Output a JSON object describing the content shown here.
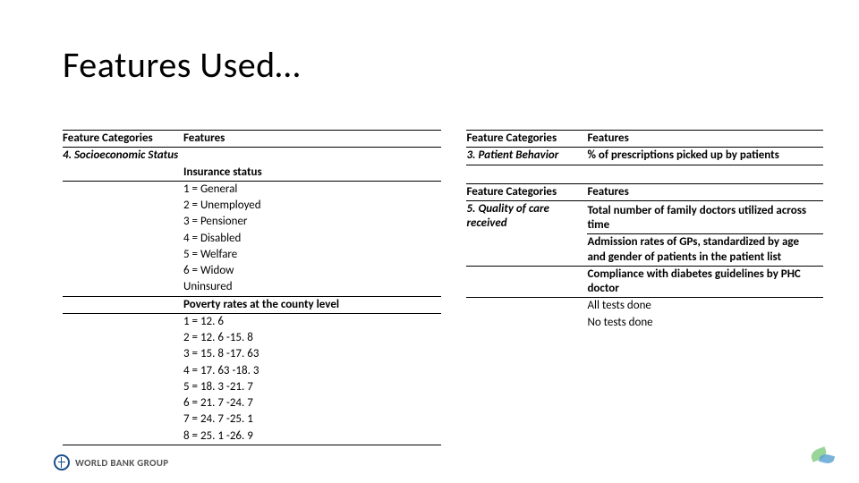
{
  "title": "Features Used…",
  "left": {
    "header": {
      "categories": "Feature Categories",
      "features": "Features"
    },
    "category": "4. Socioeconomic Status",
    "sub1": {
      "label": "Insurance status",
      "items": [
        "1  = General",
        "2  = Unemployed",
        "3  = Pensioner",
        "4  = Disabled",
        "5  = Welfare",
        "6  = Widow",
        "Uninsured"
      ]
    },
    "sub2": {
      "label": "Poverty rates at the county level",
      "items": [
        "1 = 12. 6",
        "2 = 12. 6 -15. 8",
        "3 = 15. 8 -17. 63",
        "4 = 17. 63 -18. 3",
        "5 = 18. 3 -21. 7",
        "6 = 21. 7 -24. 7",
        "7 = 24. 7 -25. 1",
        "8 = 25. 1 -26. 9"
      ]
    }
  },
  "right": {
    "block1": {
      "header": {
        "categories": "Feature Categories",
        "features": "Features"
      },
      "category": "3. Patient Behavior",
      "feature": "% of prescriptions picked up by patients"
    },
    "block2": {
      "header": {
        "categories": "Feature Categories",
        "features": "Features"
      },
      "category": "5. Quality of care received",
      "features": [
        "Total number of family doctors utilized across time",
        "Admission rates of GPs, standardized by age and gender of patients in the patient list",
        "Compliance with diabetes guidelines by PHC doctor"
      ],
      "tail": [
        "All tests done",
        "No tests done"
      ]
    }
  },
  "footer": {
    "wb": "WORLD BANK GROUP"
  },
  "colors": {
    "text": "#000000",
    "bg": "#ffffff",
    "rule": "#000000",
    "wb": "#1a4f8b"
  }
}
